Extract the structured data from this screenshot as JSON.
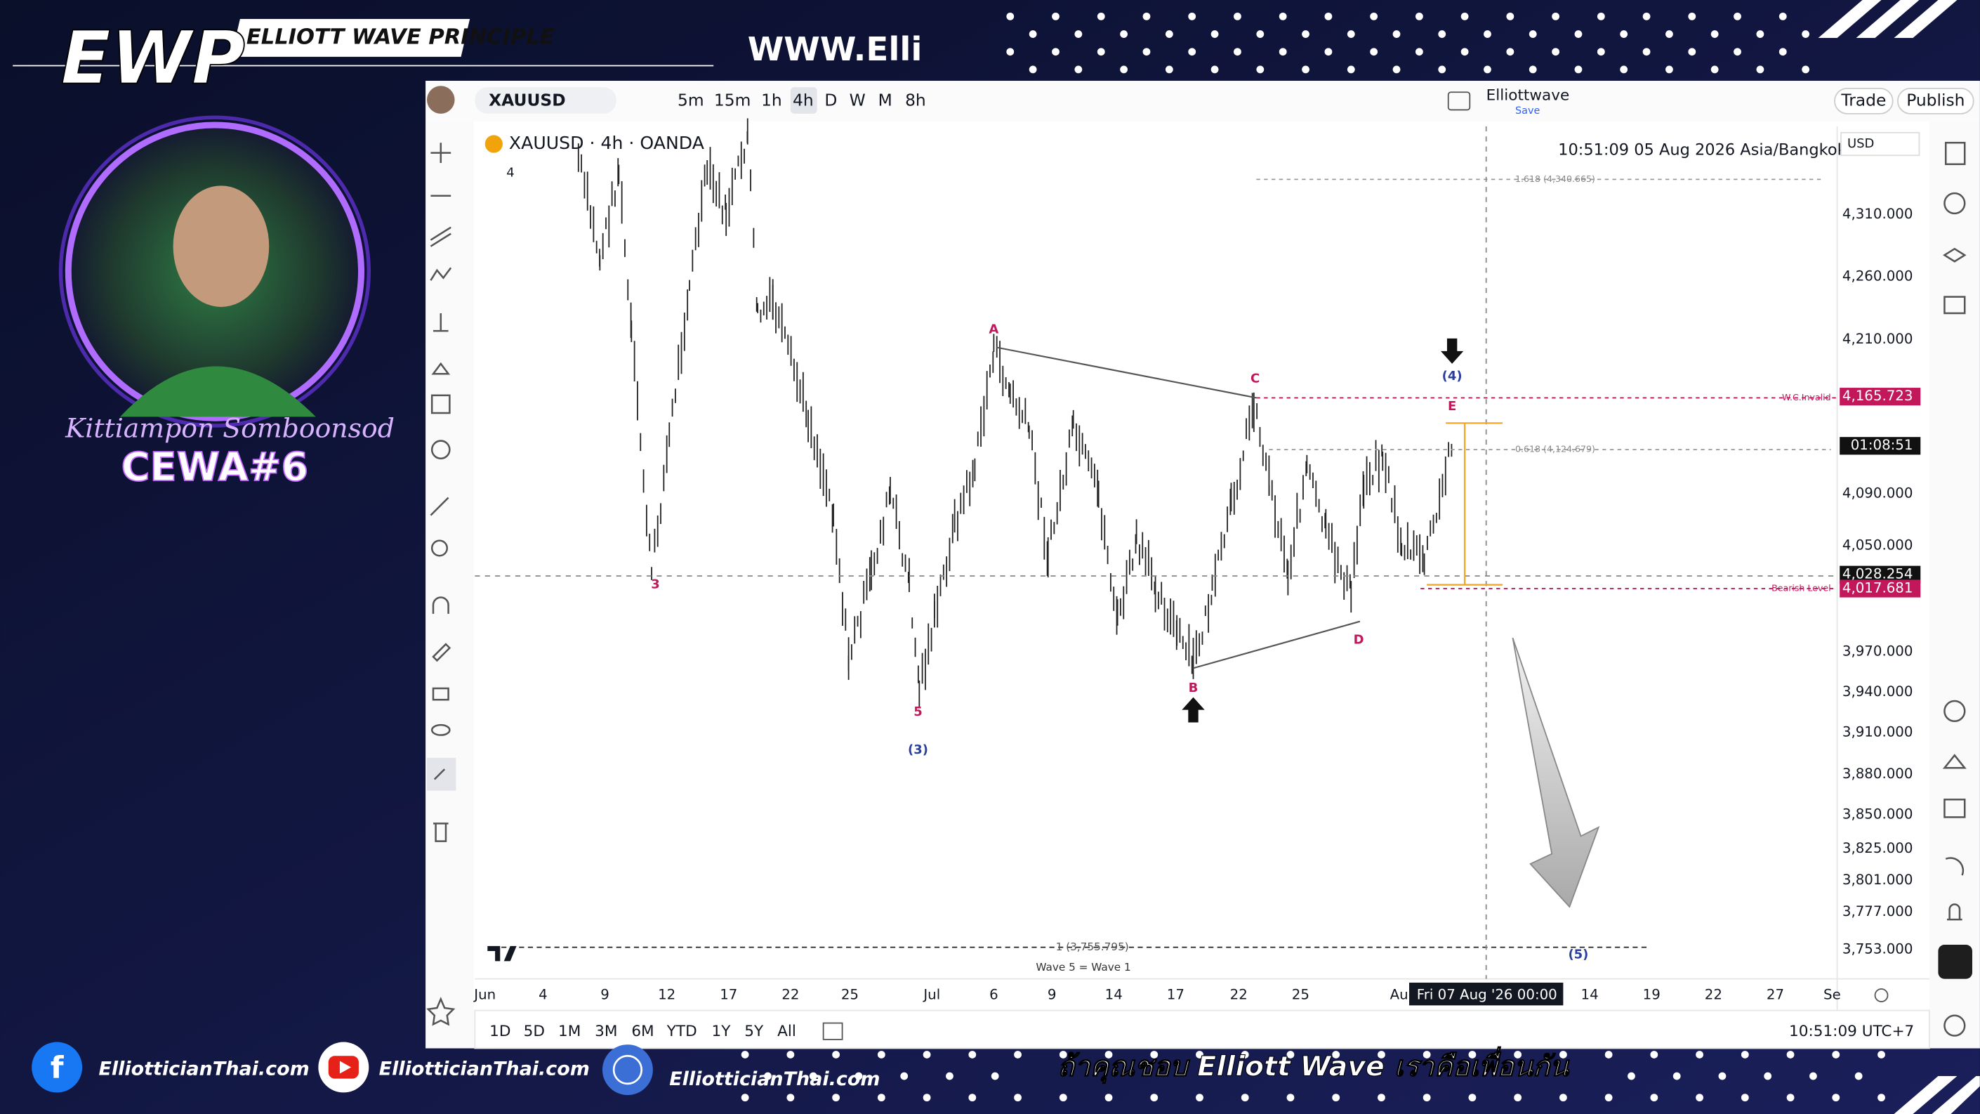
{
  "branding": {
    "logo": "EWP",
    "tagline": "ELLIOTT WAVE PRINCIPLE",
    "url": "WWW.Elli",
    "host_name": "Kittiampon Somboonsod",
    "show": "CEWA#6"
  },
  "toolbar": {
    "symbol": "XAUUSD",
    "intervals": [
      "5m",
      "15m",
      "1h",
      "4h",
      "D",
      "W",
      "M",
      "8h"
    ],
    "layout_name": "Elliottwave",
    "layout_status": "Save",
    "buttons": [
      "Trade",
      "Publish"
    ]
  },
  "chart": {
    "legend": "XAUUSD · 4h · OANDA",
    "legend_count": "4",
    "clock": "10:51:09 05 Aug 2026 Asia/Bangkok",
    "currency": "USD",
    "price_labels": [
      "4,310.000",
      "4,260.000",
      "4,210.000",
      "4,090.000",
      "4,050.000",
      "3,970.000",
      "3,940.000",
      "3,910.000",
      "3,880.000",
      "3,850.000",
      "3,825.000",
      "3,801.000",
      "3,777.000",
      "3,753.000"
    ],
    "price_badges": [
      "4,165.723",
      "01:08:51",
      "4,028.254",
      "4,017.681"
    ],
    "date_labels": [
      "Jun",
      "4",
      "9",
      "12",
      "17",
      "22",
      "25",
      "Jul",
      "6",
      "9",
      "14",
      "17",
      "22",
      "25",
      "Au",
      "14",
      "19",
      "22",
      "27",
      "Se"
    ],
    "crosshair_date": "Fri 07 Aug '26   00:00",
    "wave_labels": [
      "3",
      "5",
      "(3)",
      "A",
      "B",
      "C",
      "D",
      "E",
      "(4)",
      "(5)"
    ],
    "annotations": [
      "1.618 (4,340.665)",
      "0.618 (4,124.679)",
      "W.C.Invalid",
      "Bearish Level",
      "1 (3,755.795)",
      "Wave 5 = Wave 1"
    ]
  },
  "ranges": [
    "1D",
    "5D",
    "1M",
    "3M",
    "6M",
    "YTD",
    "1Y",
    "5Y",
    "All"
  ],
  "status_time": "10:51:09 UTC+7",
  "footer": {
    "links": [
      "ElliotticianThai.com",
      "ElliotticianThai.com",
      "ElliotticianThai.com"
    ],
    "slogan": "ถ้าคุณชอบ Elliott Wave เราคือเพื่อนกัน"
  }
}
